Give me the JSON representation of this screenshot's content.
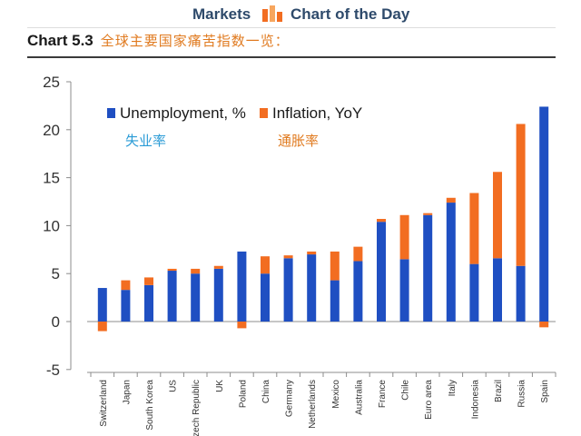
{
  "header": {
    "left_label": "Markets",
    "right_label": "Chart of the Day",
    "icon": "bar-chart-icon"
  },
  "title": {
    "number": "Chart 5.3",
    "text": "全球主要国家痛苦指数一览："
  },
  "chart_data": {
    "type": "bar",
    "stacked": true,
    "categories": [
      "Switzerland",
      "Japan",
      "South Korea",
      "US",
      "Czech Republic",
      "UK",
      "Poland",
      "China",
      "Germany",
      "Netherlands",
      "Mexico",
      "Australia",
      "France",
      "Chile",
      "Euro area",
      "Italy",
      "Indonesia",
      "Brazil",
      "Russia",
      "Spain"
    ],
    "series": [
      {
        "name": "Unemployment, %",
        "name_cn": "失业率",
        "color": "#1f4fc2",
        "values": [
          3.5,
          3.3,
          3.8,
          5.3,
          5.0,
          5.5,
          7.3,
          5.0,
          6.6,
          7.0,
          4.3,
          6.3,
          10.4,
          6.5,
          11.1,
          12.4,
          6.0,
          6.6,
          5.8,
          22.4
        ]
      },
      {
        "name": "Inflation, YoY",
        "name_cn": "通胀率",
        "color": "#f26d21",
        "values": [
          -1.0,
          1.0,
          0.8,
          0.2,
          0.5,
          0.3,
          -0.7,
          1.8,
          0.3,
          0.3,
          3.0,
          1.5,
          0.3,
          4.6,
          0.2,
          0.5,
          7.4,
          9.0,
          14.8,
          -0.6
        ]
      }
    ],
    "ylim": [
      -5,
      25
    ],
    "yticks": [
      -5,
      0,
      5,
      10,
      15,
      20,
      25
    ],
    "grid": false,
    "legend": "top-left"
  }
}
